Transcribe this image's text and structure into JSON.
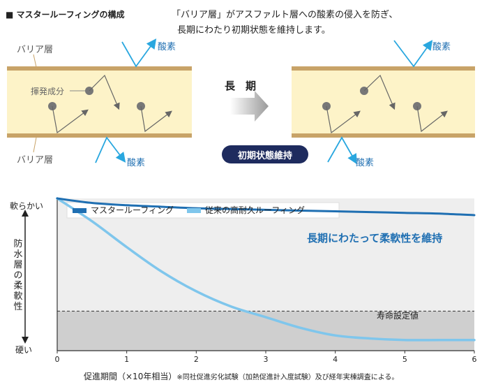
{
  "header": {
    "section_title": "■ マスタールーフィングの構成",
    "note_line1": "「バリア層」がアスファルト層への酸素の侵入を防ぎ、",
    "note_line2": "長期にわたり初期状態を維持します。"
  },
  "diagram": {
    "barrier_top_label": "バリア層",
    "barrier_bottom_label": "バリア層",
    "volatile_label": "揮発成分",
    "oxygen_top_left": "酸素",
    "oxygen_bottom_left": "酸素",
    "oxygen_top_right": "酸素",
    "oxygen_bottom_right": "酸素",
    "long_term_label": "長　期",
    "initial_state_badge": "初期状態維持",
    "colors": {
      "layer_fill": "#fdf3c8",
      "barrier": "#c8a368",
      "arrow_blue": "#29a7df",
      "badge": "#1e2b5e"
    }
  },
  "chart_data": {
    "type": "line",
    "xlabel": "促進期間（×10年相当）",
    "xlabel_note": "※同社促進劣化試験（加熱促進計入度試験）及び経年実棟調査による。",
    "ylabel": "防水層の柔軟性",
    "y_top_label": "軟らかい",
    "y_bottom_label": "硬い",
    "xlim": [
      0,
      6
    ],
    "ylim": [
      0,
      100
    ],
    "x_ticks": [
      "0",
      "1",
      "2",
      "3",
      "4",
      "5",
      "6"
    ],
    "lifetime_label": "寿命設定値",
    "lifetime_value": 26,
    "highlight_label": "長期にわたって柔軟性を維持",
    "legend_position": "top-left",
    "series": [
      {
        "name": "マスタールーフィング",
        "color": "#1f6fb2",
        "x": [
          0,
          0.5,
          1,
          1.5,
          2,
          2.5,
          3,
          3.5,
          4,
          4.5,
          5,
          5.5,
          6
        ],
        "y": [
          100,
          97,
          95.5,
          94.5,
          93.5,
          93,
          92.5,
          92,
          91.5,
          91,
          90.5,
          90,
          89
        ]
      },
      {
        "name": "従来の高耐久ルーフィング",
        "color": "#7fc6ec",
        "x": [
          0,
          0.5,
          1,
          1.5,
          2,
          2.5,
          3,
          3.5,
          4,
          4.5,
          5,
          5.5,
          6
        ],
        "y": [
          100,
          85,
          68,
          52,
          39,
          29,
          22,
          15,
          10,
          8,
          7,
          7,
          7
        ]
      }
    ]
  }
}
